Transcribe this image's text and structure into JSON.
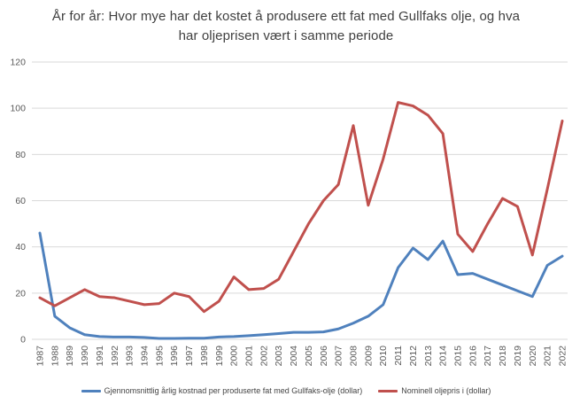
{
  "chart_data": {
    "type": "line",
    "title": "År for år: Hvor mye har det kostet å produsere ett fat med Gullfaks olje, og hva har oljeprisen vært i samme periode",
    "categories": [
      1987,
      1988,
      1989,
      1990,
      1991,
      1992,
      1993,
      1994,
      1995,
      1996,
      1997,
      1998,
      1999,
      2000,
      2001,
      2002,
      2003,
      2004,
      2005,
      2006,
      2007,
      2008,
      2009,
      2010,
      2011,
      2012,
      2013,
      2014,
      2015,
      2016,
      2017,
      2018,
      2019,
      2020,
      2021,
      2022
    ],
    "series": [
      {
        "name": "Gjennomsnittlig årlig kostnad per produserte fat med Gullfaks-olje (dollar)",
        "color": "#4F81BD",
        "values": [
          46,
          10,
          5,
          2,
          1.2,
          1,
          1,
          0.8,
          0.4,
          0.4,
          0.5,
          0.5,
          1,
          1.2,
          1.6,
          2,
          2.5,
          3,
          3,
          3.2,
          4.5,
          7,
          10,
          15,
          31,
          39.5,
          34.5,
          42.5,
          28,
          28.5,
          26,
          23.5,
          21,
          18.5,
          32,
          36
        ]
      },
      {
        "name": "Nominell oljepris i (dollar)",
        "color": "#C0504D",
        "values": [
          18,
          14.5,
          18,
          21.5,
          18.5,
          18,
          16.5,
          15,
          15.5,
          20,
          18.5,
          12,
          16.5,
          27,
          21.5,
          22,
          26,
          38,
          50,
          60,
          67,
          92.5,
          58,
          78,
          102.5,
          101,
          97,
          89,
          45.5,
          38,
          50,
          61,
          57.5,
          36.5,
          65,
          94.5
        ]
      }
    ],
    "xlabel": "",
    "ylabel": "",
    "ylim": [
      0,
      120
    ],
    "yticks": [
      0,
      20,
      40,
      60,
      80,
      100,
      120
    ],
    "grid": true,
    "legend_position": "bottom",
    "grid_color": "#d9d9d9",
    "tick_label_color": "#595959"
  }
}
